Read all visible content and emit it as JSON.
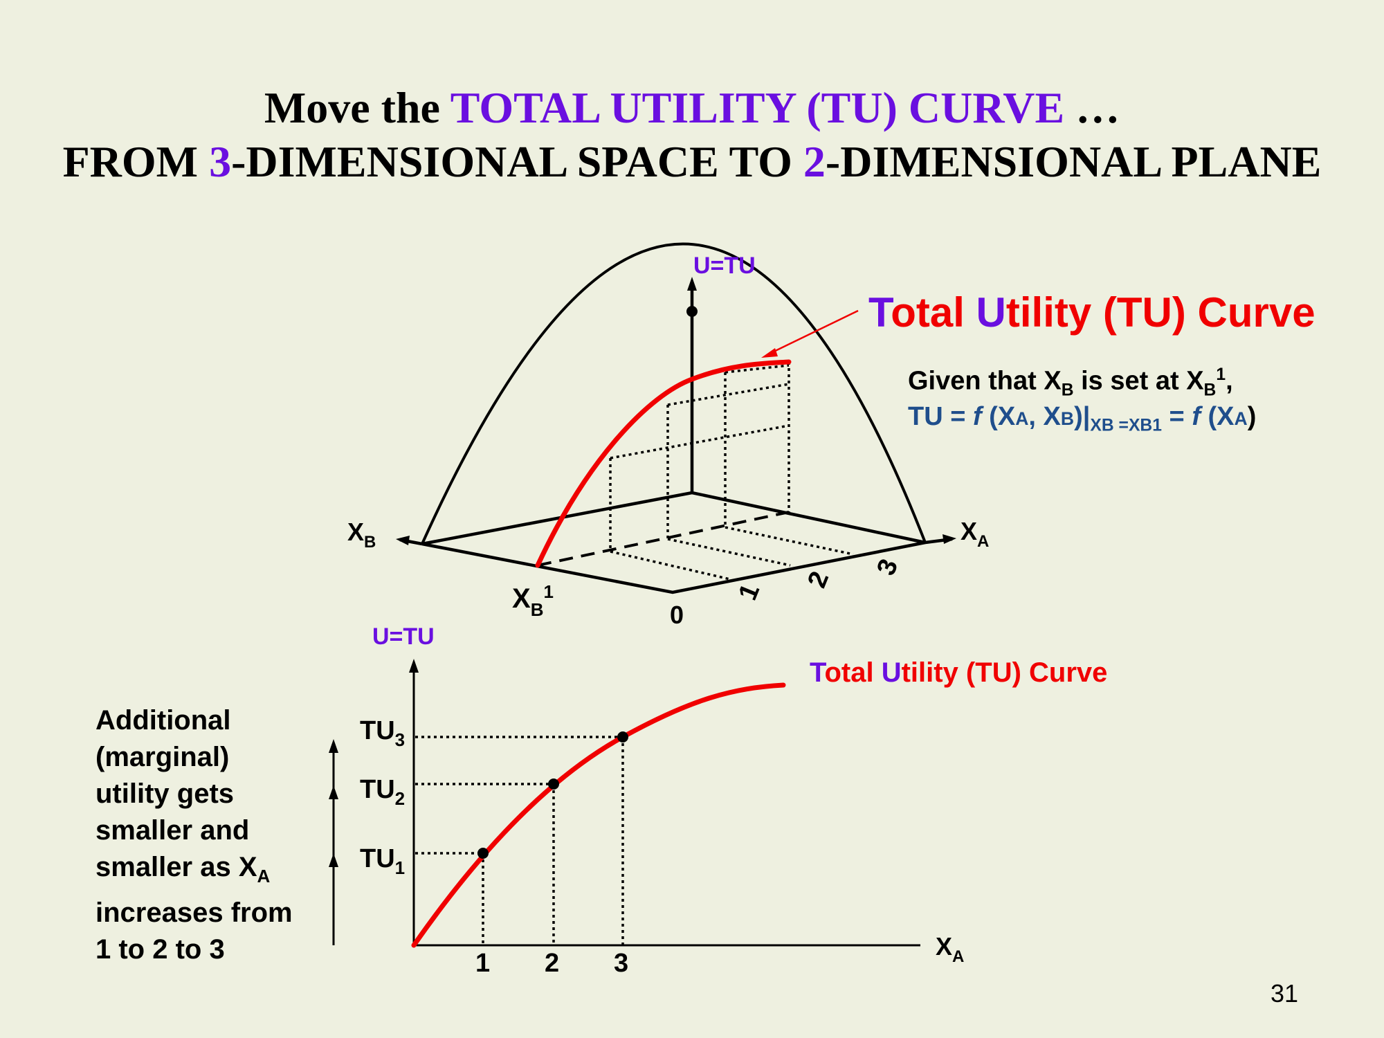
{
  "title": {
    "line1": {
      "pre": "Move the ",
      "highlight": "TOTAL UTILITY (TU) CURVE",
      "post": " …"
    },
    "line2": {
      "pre": "FROM ",
      "num1": "3",
      "mid": "-DIMENSIONAL SPACE TO ",
      "num2": "2",
      "post": "-DIMENSIONAL PLANE"
    }
  },
  "diagram3d": {
    "u_axis_label": "U=TU",
    "xa_label": "X",
    "xa_sub": "A",
    "xb_label": "X",
    "xb_sub": "B",
    "xb1_label": "X",
    "xb1_sub": "B",
    "xb1_sup": "1",
    "origin": "0",
    "ticks": [
      "1",
      "2",
      "3"
    ],
    "curve_title": {
      "t": "T",
      "otal": "otal ",
      "u": "U",
      "rest": "tility (TU) Curve"
    },
    "given": {
      "line1_pre": "Given that X",
      "line1_sub1": "B",
      "line1_mid": " is set at X",
      "line1_sub2": "B",
      "line1_sup": "1",
      "line1_end": ",",
      "line2_a": "TU = ",
      "line2_f1": "f",
      "line2_b": " (X",
      "line2_sub1": "A",
      "line2_c": ", X",
      "line2_sub2": "B",
      "line2_d": ")|",
      "line2_sub3": "XB =XB1",
      "line2_e": " = ",
      "line2_f2": "f",
      "line2_g": " (X",
      "line2_sub4": "A",
      "line2_h": ")"
    }
  },
  "diagram2d": {
    "u_axis_label": "U=TU",
    "xa_label": "X",
    "xa_sub": "A",
    "x_ticks": [
      "1",
      "2",
      "3"
    ],
    "tu_labels": [
      {
        "t": "TU",
        "s": "1"
      },
      {
        "t": "TU",
        "s": "2"
      },
      {
        "t": "TU",
        "s": "3"
      }
    ],
    "curve_title": {
      "t": "T",
      "otal": "otal ",
      "u": "U",
      "rest": "tility (TU) Curve"
    }
  },
  "marginal_note": {
    "lines": [
      "Additional",
      "(marginal)",
      "utility gets",
      "smaller and"
    ],
    "line5_pre": "smaller as X",
    "line5_sub": "A",
    "line6": "increases from",
    "line7": "1 to 2 to 3"
  },
  "slide_number": "31",
  "colors": {
    "curve": "#f00000",
    "accent": "#6a0fe0",
    "formula": "#1f4e8c",
    "background": "#eef0e0"
  }
}
